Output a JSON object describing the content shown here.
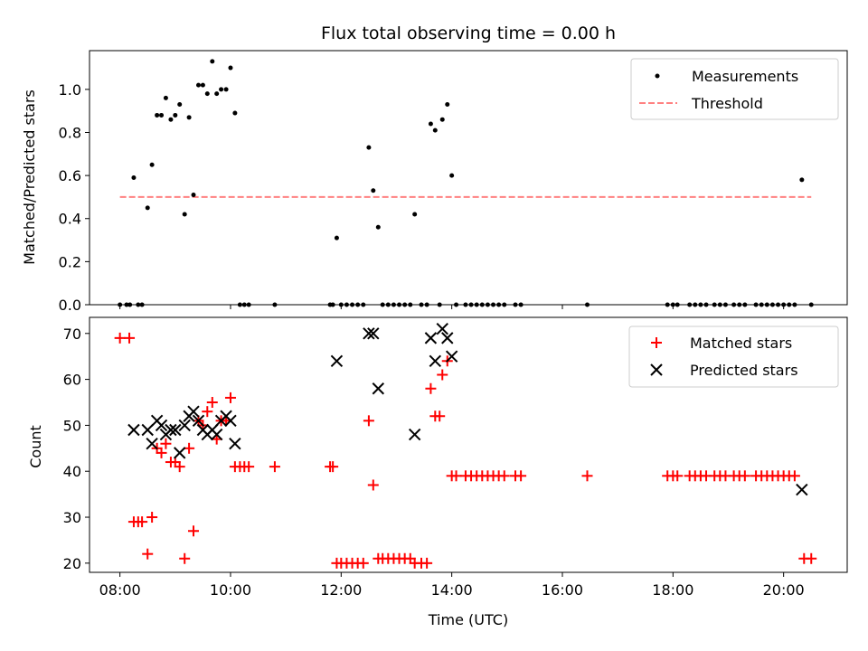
{
  "chart_data": [
    {
      "type": "scatter",
      "title": "Flux total observing time = 0.00 h",
      "xlabel": "",
      "ylabel": "Matched/Predicted stars",
      "ylim": [
        0,
        1.18
      ],
      "xlim": [
        7.45,
        21.15
      ],
      "yticks": [
        "0.0",
        "0.2",
        "0.4",
        "0.6",
        "0.8",
        "1.0"
      ],
      "legend_position": "top-right",
      "series": [
        {
          "name": "Measurements",
          "marker": "dot",
          "color": "#000000",
          "points": [
            [
              8.0,
              0
            ],
            [
              8.12,
              0
            ],
            [
              8.18,
              0
            ],
            [
              8.25,
              0.59
            ],
            [
              8.33,
              0
            ],
            [
              8.4,
              0
            ],
            [
              8.5,
              0.45
            ],
            [
              8.58,
              0.65
            ],
            [
              8.67,
              0.88
            ],
            [
              8.75,
              0.88
            ],
            [
              8.83,
              0.96
            ],
            [
              8.92,
              0.86
            ],
            [
              9.0,
              0.88
            ],
            [
              9.08,
              0.93
            ],
            [
              9.17,
              0.42
            ],
            [
              9.25,
              0.87
            ],
            [
              9.33,
              0.51
            ],
            [
              9.42,
              1.02
            ],
            [
              9.5,
              1.02
            ],
            [
              9.58,
              0.98
            ],
            [
              9.67,
              1.13
            ],
            [
              9.75,
              0.98
            ],
            [
              9.83,
              1.0
            ],
            [
              9.92,
              1.0
            ],
            [
              10.0,
              1.1
            ],
            [
              10.08,
              0.89
            ],
            [
              10.17,
              0
            ],
            [
              10.25,
              0
            ],
            [
              10.33,
              0
            ],
            [
              10.8,
              0
            ],
            [
              11.8,
              0
            ],
            [
              11.85,
              0
            ],
            [
              11.92,
              0.31
            ],
            [
              12.0,
              0
            ],
            [
              12.1,
              0
            ],
            [
              12.2,
              0
            ],
            [
              12.3,
              0
            ],
            [
              12.4,
              0
            ],
            [
              12.5,
              0.73
            ],
            [
              12.58,
              0.53
            ],
            [
              12.67,
              0.36
            ],
            [
              12.75,
              0
            ],
            [
              12.85,
              0
            ],
            [
              12.95,
              0
            ],
            [
              13.05,
              0
            ],
            [
              13.15,
              0
            ],
            [
              13.25,
              0
            ],
            [
              13.33,
              0.42
            ],
            [
              13.45,
              0
            ],
            [
              13.55,
              0
            ],
            [
              13.62,
              0.84
            ],
            [
              13.7,
              0.81
            ],
            [
              13.78,
              0
            ],
            [
              13.83,
              0.86
            ],
            [
              13.92,
              0.93
            ],
            [
              14.0,
              0.6
            ],
            [
              14.08,
              0
            ],
            [
              14.25,
              0
            ],
            [
              14.35,
              0
            ],
            [
              14.45,
              0
            ],
            [
              14.55,
              0
            ],
            [
              14.65,
              0
            ],
            [
              14.75,
              0
            ],
            [
              14.85,
              0
            ],
            [
              14.95,
              0
            ],
            [
              15.15,
              0
            ],
            [
              15.25,
              0
            ],
            [
              16.45,
              0
            ],
            [
              17.9,
              0
            ],
            [
              18.0,
              0
            ],
            [
              18.08,
              0
            ],
            [
              18.3,
              0
            ],
            [
              18.4,
              0
            ],
            [
              18.5,
              0
            ],
            [
              18.6,
              0
            ],
            [
              18.75,
              0
            ],
            [
              18.85,
              0
            ],
            [
              18.95,
              0
            ],
            [
              19.1,
              0
            ],
            [
              19.2,
              0
            ],
            [
              19.3,
              0
            ],
            [
              19.5,
              0
            ],
            [
              19.6,
              0
            ],
            [
              19.7,
              0
            ],
            [
              19.8,
              0
            ],
            [
              19.9,
              0
            ],
            [
              20.0,
              0
            ],
            [
              20.1,
              0
            ],
            [
              20.2,
              0
            ],
            [
              20.33,
              0.58
            ],
            [
              20.5,
              0
            ]
          ]
        },
        {
          "name": "Threshold",
          "marker": "dashed-line",
          "color": "#ff8080",
          "x": [
            8.0,
            20.5
          ],
          "y": [
            0.5,
            0.5
          ]
        }
      ]
    },
    {
      "type": "scatter",
      "title": "",
      "xlabel": "Time (UTC)",
      "ylabel": "Count",
      "ylim": [
        18,
        73.5
      ],
      "xlim": [
        7.45,
        21.15
      ],
      "yticks": [
        "20",
        "30",
        "40",
        "50",
        "60",
        "70"
      ],
      "xticks": [
        "08:00",
        "10:00",
        "12:00",
        "14:00",
        "16:00",
        "18:00",
        "20:00"
      ],
      "legend_position": "top-right",
      "series": [
        {
          "name": "Matched stars",
          "marker": "plus",
          "color": "#ff0000",
          "points": [
            [
              8.0,
              69
            ],
            [
              8.17,
              69
            ],
            [
              8.25,
              29
            ],
            [
              8.33,
              29
            ],
            [
              8.4,
              29
            ],
            [
              8.5,
              22
            ],
            [
              8.58,
              30
            ],
            [
              8.67,
              45
            ],
            [
              8.75,
              44
            ],
            [
              8.83,
              46
            ],
            [
              8.92,
              42
            ],
            [
              9.0,
              42
            ],
            [
              9.08,
              41
            ],
            [
              9.17,
              21
            ],
            [
              9.25,
              45
            ],
            [
              9.33,
              27
            ],
            [
              9.42,
              51
            ],
            [
              9.5,
              50
            ],
            [
              9.58,
              53
            ],
            [
              9.67,
              55
            ],
            [
              9.75,
              47
            ],
            [
              9.83,
              51
            ],
            [
              9.92,
              51
            ],
            [
              10.0,
              56
            ],
            [
              10.08,
              41
            ],
            [
              10.17,
              41
            ],
            [
              10.25,
              41
            ],
            [
              10.33,
              41
            ],
            [
              10.8,
              41
            ],
            [
              11.8,
              41
            ],
            [
              11.85,
              41
            ],
            [
              11.92,
              20
            ],
            [
              12.0,
              20
            ],
            [
              12.1,
              20
            ],
            [
              12.2,
              20
            ],
            [
              12.3,
              20
            ],
            [
              12.4,
              20
            ],
            [
              12.5,
              51
            ],
            [
              12.58,
              37
            ],
            [
              12.67,
              21
            ],
            [
              12.75,
              21
            ],
            [
              12.85,
              21
            ],
            [
              12.95,
              21
            ],
            [
              13.05,
              21
            ],
            [
              13.15,
              21
            ],
            [
              13.25,
              21
            ],
            [
              13.33,
              20
            ],
            [
              13.45,
              20
            ],
            [
              13.55,
              20
            ],
            [
              13.62,
              58
            ],
            [
              13.7,
              52
            ],
            [
              13.78,
              52
            ],
            [
              13.83,
              61
            ],
            [
              13.92,
              64
            ],
            [
              14.0,
              39
            ],
            [
              14.08,
              39
            ],
            [
              14.25,
              39
            ],
            [
              14.35,
              39
            ],
            [
              14.45,
              39
            ],
            [
              14.55,
              39
            ],
            [
              14.65,
              39
            ],
            [
              14.75,
              39
            ],
            [
              14.85,
              39
            ],
            [
              14.95,
              39
            ],
            [
              15.15,
              39
            ],
            [
              15.25,
              39
            ],
            [
              16.45,
              39
            ],
            [
              17.9,
              39
            ],
            [
              18.0,
              39
            ],
            [
              18.08,
              39
            ],
            [
              18.3,
              39
            ],
            [
              18.4,
              39
            ],
            [
              18.5,
              39
            ],
            [
              18.6,
              39
            ],
            [
              18.75,
              39
            ],
            [
              18.85,
              39
            ],
            [
              18.95,
              39
            ],
            [
              19.1,
              39
            ],
            [
              19.2,
              39
            ],
            [
              19.3,
              39
            ],
            [
              19.5,
              39
            ],
            [
              19.6,
              39
            ],
            [
              19.7,
              39
            ],
            [
              19.8,
              39
            ],
            [
              19.9,
              39
            ],
            [
              20.0,
              39
            ],
            [
              20.1,
              39
            ],
            [
              20.2,
              39
            ],
            [
              20.37,
              21
            ],
            [
              20.5,
              21
            ]
          ]
        },
        {
          "name": "Predicted stars",
          "marker": "x",
          "color": "#000000",
          "points": [
            [
              8.25,
              49
            ],
            [
              8.5,
              49
            ],
            [
              8.58,
              46
            ],
            [
              8.67,
              51
            ],
            [
              8.75,
              50
            ],
            [
              8.83,
              48
            ],
            [
              8.92,
              49
            ],
            [
              9.0,
              49
            ],
            [
              9.08,
              44
            ],
            [
              9.17,
              50
            ],
            [
              9.25,
              52
            ],
            [
              9.33,
              53
            ],
            [
              9.42,
              51
            ],
            [
              9.5,
              49
            ],
            [
              9.58,
              48
            ],
            [
              9.67,
              49
            ],
            [
              9.75,
              48
            ],
            [
              9.83,
              51
            ],
            [
              9.92,
              52
            ],
            [
              10.0,
              51
            ],
            [
              10.08,
              46
            ],
            [
              11.92,
              64
            ],
            [
              12.5,
              70
            ],
            [
              12.58,
              70
            ],
            [
              12.67,
              58
            ],
            [
              13.33,
              48
            ],
            [
              13.62,
              69
            ],
            [
              13.7,
              64
            ],
            [
              13.83,
              71
            ],
            [
              13.92,
              69
            ],
            [
              14.0,
              65
            ],
            [
              20.33,
              36
            ]
          ]
        }
      ]
    }
  ]
}
